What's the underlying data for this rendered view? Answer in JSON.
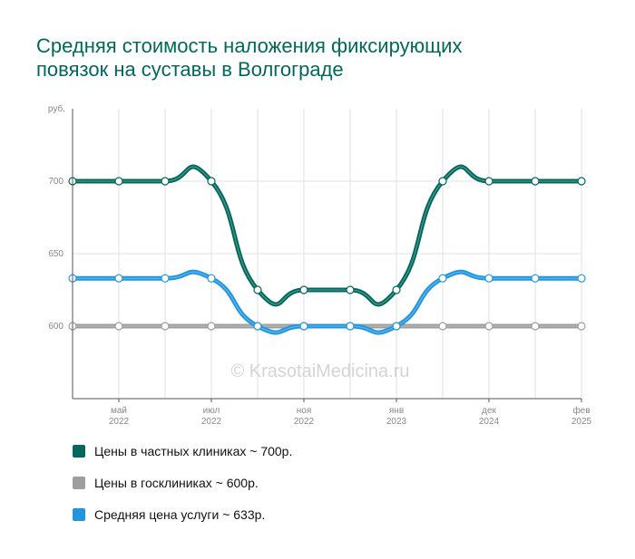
{
  "title_lines": [
    "Средняя стоимость наложения фиксирующих",
    "повязок на суставы в Волгограде"
  ],
  "watermark": "© KrasotaiMedicina.ru",
  "chart_data": {
    "type": "line",
    "title": "Средняя стоимость наложения фиксирующих повязок на суставы в Волгограде",
    "ylabel": "руб.",
    "ylim": [
      550,
      750
    ],
    "yticks": [
      600,
      650,
      700
    ],
    "grid": true,
    "legend_position": "bottom",
    "x_tick_labels": [
      {
        "month": "май",
        "year": "2022",
        "index": 1
      },
      {
        "month": "июл",
        "year": "2022",
        "index": 3
      },
      {
        "month": "ноя",
        "year": "2022",
        "index": 5
      },
      {
        "month": "янв",
        "year": "2023",
        "index": 7
      },
      {
        "month": "дек",
        "year": "2024",
        "index": 9
      },
      {
        "month": "фев",
        "year": "2025",
        "index": 11
      }
    ],
    "series": [
      {
        "name": "Цены в частных клиниках ~ 700р.",
        "color": "#00695c",
        "values": [
          700,
          700,
          700,
          700,
          625,
          625,
          625,
          625,
          700,
          700,
          700,
          700
        ]
      },
      {
        "name": "Цены в госклиниках ~ 600р.",
        "color": "#9e9e9e",
        "values": [
          600,
          600,
          600,
          600,
          600,
          600,
          600,
          600,
          600,
          600,
          600,
          600
        ]
      },
      {
        "name": "Средняя цена услуги ~ 633р.",
        "color": "#2196e0",
        "values": [
          633,
          633,
          633,
          633,
          600,
          600,
          600,
          600,
          633,
          633,
          633,
          633
        ]
      }
    ]
  }
}
